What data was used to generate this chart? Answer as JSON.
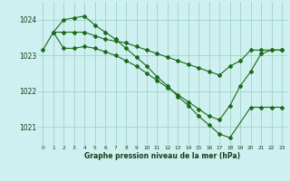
{
  "title": "Graphe pression niveau de la mer (hPa)",
  "bg_color": "#cff0f0",
  "line_color": "#1a6b1a",
  "grid_color": "#99ccbb",
  "xlim": [
    -0.5,
    23.5
  ],
  "ylim": [
    1020.5,
    1024.5
  ],
  "yticks": [
    1021,
    1022,
    1023,
    1024
  ],
  "xticks": [
    0,
    1,
    2,
    3,
    4,
    5,
    6,
    7,
    8,
    9,
    10,
    11,
    12,
    13,
    14,
    15,
    16,
    17,
    18,
    19,
    20,
    21,
    22,
    23
  ],
  "line1_x": [
    0,
    1,
    2,
    3,
    4,
    5,
    6,
    7,
    8,
    9,
    10,
    11,
    12,
    13,
    14,
    15,
    16,
    17,
    18,
    19,
    20,
    21,
    22,
    23
  ],
  "line1_y": [
    1023.15,
    1023.65,
    1023.65,
    1023.65,
    1023.65,
    1023.55,
    1023.45,
    1023.4,
    1023.35,
    1023.25,
    1023.15,
    1023.05,
    1022.95,
    1022.85,
    1022.75,
    1022.65,
    1022.55,
    1022.45,
    1022.7,
    1022.85,
    1023.15,
    1023.15,
    1023.15,
    1023.15
  ],
  "line2_x": [
    1,
    2,
    3,
    4,
    5,
    6,
    7,
    8,
    9,
    10,
    11,
    12,
    13,
    14,
    15,
    16,
    17,
    18,
    19,
    20,
    21,
    22,
    23
  ],
  "line2_y": [
    1023.65,
    1023.2,
    1023.2,
    1023.25,
    1023.2,
    1023.1,
    1023.0,
    1022.85,
    1022.7,
    1022.5,
    1022.3,
    1022.1,
    1021.9,
    1021.7,
    1021.5,
    1021.3,
    1021.2,
    1021.6,
    1022.15,
    1022.55,
    1023.05,
    1023.15,
    1023.15
  ],
  "line3_x": [
    1,
    2,
    3,
    4,
    5,
    6,
    7,
    8,
    9,
    10,
    11,
    12,
    13,
    14,
    15,
    16,
    17,
    18,
    20,
    21,
    22,
    23
  ],
  "line3_y": [
    1023.65,
    1024.0,
    1024.05,
    1024.1,
    1023.85,
    1023.65,
    1023.45,
    1023.2,
    1022.95,
    1022.7,
    1022.4,
    1022.15,
    1021.85,
    1021.6,
    1021.3,
    1021.05,
    1020.8,
    1020.7,
    1021.55,
    1021.55,
    1021.55,
    1021.55
  ]
}
